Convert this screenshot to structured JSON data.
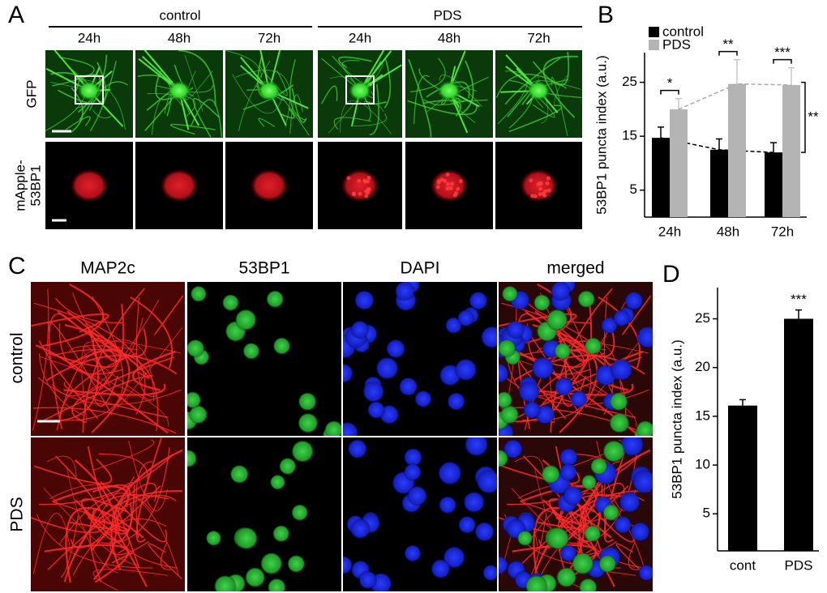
{
  "panel_a": {
    "label": "A",
    "groups": [
      "control",
      "PDS"
    ],
    "times": [
      "24h",
      "48h",
      "72h",
      "24h",
      "48h",
      "72h"
    ],
    "rows": [
      [
        "GFP"
      ],
      [
        "mApple-",
        "53BP1"
      ]
    ]
  },
  "panel_c": {
    "label": "C",
    "columns": [
      "MAP2c",
      "53BP1",
      "DAPI",
      "merged"
    ],
    "rows": [
      "control",
      "PDS"
    ]
  },
  "chart_data": [
    {
      "type": "bar",
      "panel_label": "B",
      "y_label": "53BP1 puncta index (a.u.)",
      "categories": [
        "24h",
        "48h",
        "72h"
      ],
      "series": [
        {
          "name": "control",
          "color": "#000000",
          "values": [
            14.7,
            12.5,
            12.0
          ],
          "errors": [
            2.0,
            2.0,
            1.8
          ]
        },
        {
          "name": "PDS",
          "color": "#b4b4b4",
          "values": [
            20.0,
            24.7,
            24.5
          ],
          "errors": [
            2.0,
            4.5,
            3.2
          ]
        }
      ],
      "ylim": [
        0,
        30.5
      ],
      "yticks": [
        5,
        15,
        25
      ],
      "annotations": [
        "*",
        "**",
        "***",
        "**"
      ]
    },
    {
      "type": "bar",
      "panel_label": "D",
      "y_label": "53BP1 puncta index (a.u.)",
      "categories": [
        "cont",
        "PDS"
      ],
      "values": [
        16.1,
        25.0
      ],
      "errors": [
        0.6,
        0.9
      ],
      "color": "#000000",
      "ylim": [
        1.2,
        28.2
      ],
      "yticks": [
        5,
        10,
        15,
        20,
        25
      ],
      "annotations": [
        "***"
      ]
    }
  ]
}
